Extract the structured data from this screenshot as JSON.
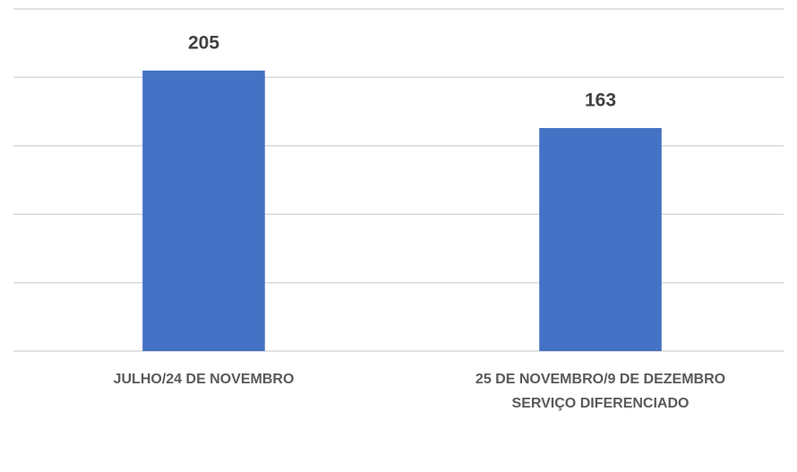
{
  "chart_data": {
    "type": "bar",
    "categories": [
      "JULHO/24 DE NOVEMBRO",
      "25 DE NOVEMBRO/9 DE DEZEMBRO\nSERVIÇO DIFERENCIADO"
    ],
    "values": [
      205,
      163
    ],
    "color": "#4472c4",
    "ylim": [
      0,
      250
    ],
    "yticks": [
      0,
      50,
      100,
      150,
      200,
      250
    ],
    "grid": true
  }
}
